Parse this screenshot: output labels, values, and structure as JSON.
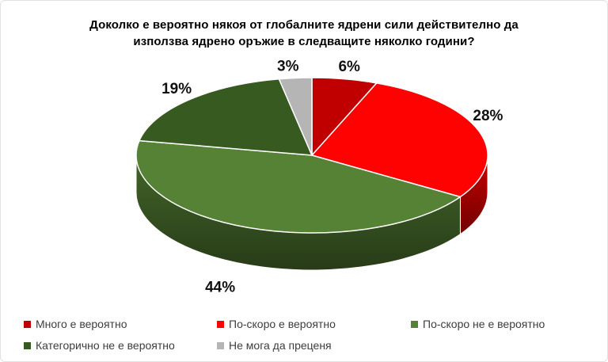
{
  "chart_data": {
    "type": "pie",
    "effect": "3d",
    "title": "Доколко е вероятно някоя от глобалните ядрени сили действително да използва ядрено оръжие в следващите няколко години?",
    "direction": "clockwise",
    "start_angle_deg": 0,
    "legend_position": "bottom",
    "background_color": "#FFFFFF",
    "slice_border_color": "#FFFFFF",
    "slices": [
      {
        "label": "Много е вероятно",
        "value": 6,
        "display": "6%",
        "color": "#C00000"
      },
      {
        "label": "По-скоро е вероятно",
        "value": 28,
        "display": "28%",
        "color": "#FE0101"
      },
      {
        "label": "По-скоро не е вероятно",
        "value": 44,
        "display": "44%",
        "color": "#568235"
      },
      {
        "label": "Категорично не е вероятно",
        "value": 19,
        "display": "19%",
        "color": "#375A20"
      },
      {
        "label": "Не мога да преценя",
        "value": 3,
        "display": "3%",
        "color": "#B5B5B5"
      }
    ]
  }
}
